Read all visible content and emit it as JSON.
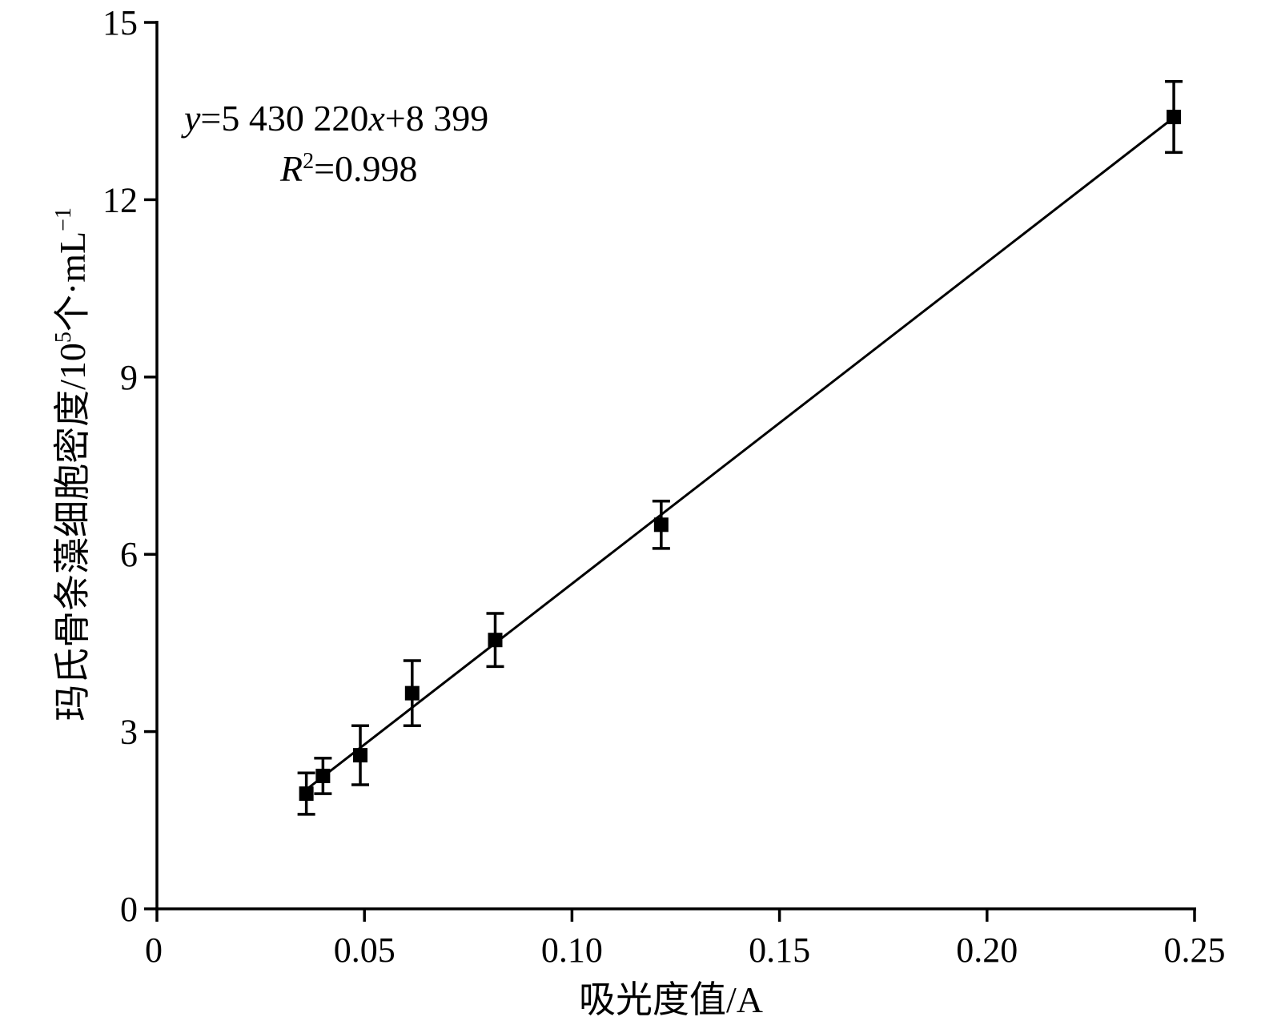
{
  "chart_data": {
    "type": "scatter",
    "title": "",
    "xlabel": "吸光度值/A",
    "ylabel": {
      "main": "玛氏骨条藻细胞密度/10",
      "exp": "5",
      "unit": "个·mL",
      "unit_exp": "−1"
    },
    "xlim": [
      0,
      0.25
    ],
    "ylim": [
      0,
      15
    ],
    "x_ticks": [
      "0",
      "0.05",
      "0.10",
      "0.15",
      "0.20",
      "0.25"
    ],
    "x_tick_values": [
      0,
      0.05,
      0.1,
      0.15,
      0.2,
      0.25
    ],
    "y_ticks": [
      "0",
      "3",
      "6",
      "9",
      "12",
      "15"
    ],
    "y_tick_values": [
      0,
      3,
      6,
      9,
      12,
      15
    ],
    "grid": false,
    "series": [
      {
        "x": [
          0.036,
          0.04,
          0.049,
          0.0615,
          0.0815,
          0.1215,
          0.245
        ],
        "y": [
          1.95,
          2.25,
          2.6,
          3.65,
          4.55,
          6.5,
          13.4
        ],
        "err": [
          0.35,
          0.3,
          0.5,
          0.55,
          0.45,
          0.4,
          0.6
        ],
        "marker": "square",
        "color": "#000000"
      }
    ],
    "fit_line": {
      "x": [
        0.036,
        0.245
      ],
      "y": [
        2.02,
        13.39
      ],
      "color": "#000000"
    },
    "annotation": {
      "eq_y": "y",
      "eq_mid": "=5 430 220",
      "eq_x": "x",
      "eq_end": "+8 399",
      "r_R": "R",
      "r_sup": "2",
      "r_val": "=0.998"
    }
  }
}
